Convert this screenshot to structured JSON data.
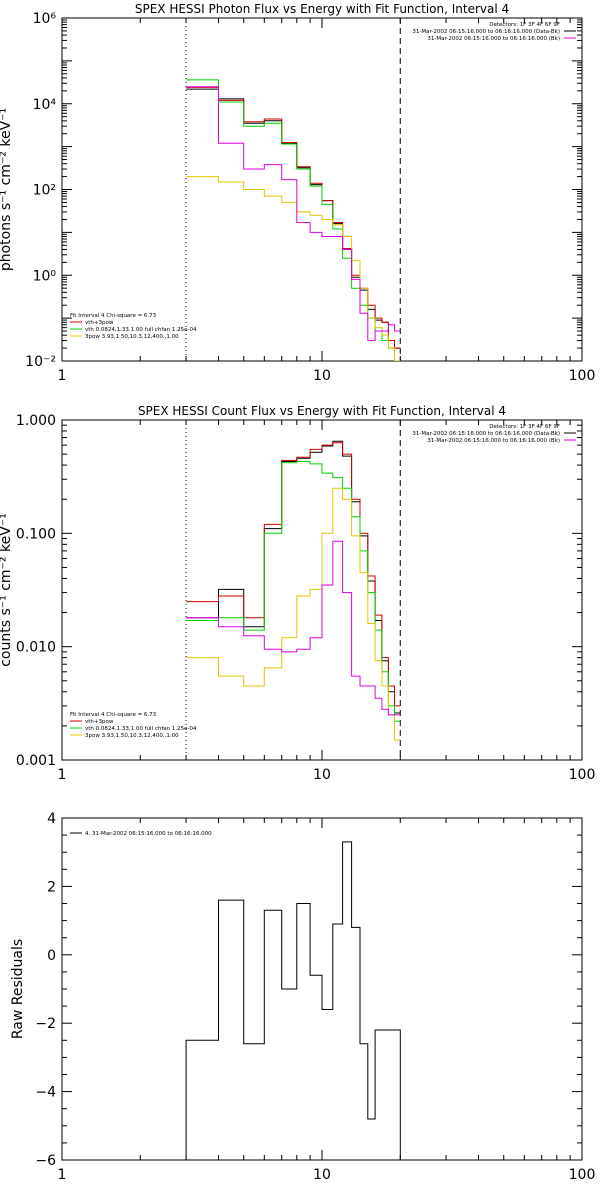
{
  "chart_data": [
    {
      "type": "line",
      "title": "SPEX HESSI Photon Flux vs Energy with Fit Function, Interval 4",
      "ylabel": "photons s⁻¹ cm⁻² keV⁻¹",
      "xlabel": "",
      "xscale": "log",
      "yscale": "log",
      "xlim": [
        1,
        100
      ],
      "ylim": [
        0.01,
        1000000
      ],
      "xtick_labels": [
        "1",
        "10",
        "100"
      ],
      "ytick_labels": [
        "10⁻²",
        "10⁰",
        "10²",
        "10⁴",
        "10⁶"
      ],
      "ytick_values": [
        0.01,
        1,
        100,
        10000,
        1000000
      ],
      "vlines": [
        {
          "x": 3.0,
          "style": "dotted"
        },
        {
          "x": 20.0,
          "style": "dashed"
        }
      ],
      "info_lines": [
        "Detectors: 1F 3F 4F 6F 9F",
        "31-Mar-2002 06:15:16.000 to 06:16:16.000 (Data-Bk)",
        "31-Mar-2002 06:15:16.000 to 06:16:16.000 (Bk)"
      ],
      "info_colors": [
        "",
        "#000000",
        "#e000e0"
      ],
      "fit_label": "Fit Interval 4   Chi-square = 6.73",
      "legend_lines": [
        "vth+3pow",
        "vth 0.0824,1.33,1.00  full chfan 1.25e-04",
        "3pow 3.93,1.50,10.3,12,400.,1.00"
      ],
      "legend_colors": [
        "#d00000",
        "#00d000",
        "#e0c800"
      ],
      "series": [
        {
          "name": "data",
          "color": "#000000",
          "edges": [
            3.0,
            4.0,
            5.0,
            6.0,
            7.0,
            8.0,
            9.0,
            10.0,
            11.0,
            12.0,
            13.0,
            14.0,
            15.0,
            16.0,
            17.0,
            18.0,
            19.0,
            20.0
          ],
          "values": [
            22000,
            13000,
            3500,
            4000,
            1200,
            320,
            130,
            55,
            16,
            4,
            0.9,
            0.45,
            0.16,
            0.09,
            0.08,
            0.03,
            0.02
          ]
        },
        {
          "name": "vth+3pow",
          "color": "#d00000",
          "edges": [
            3.0,
            4.0,
            5.0,
            6.0,
            7.0,
            8.0,
            9.0,
            10.0,
            11.0,
            12.0,
            13.0,
            14.0,
            15.0,
            16.0,
            17.0,
            18.0,
            19.0,
            20.0
          ],
          "values": [
            24000,
            12000,
            3800,
            4400,
            1250,
            340,
            140,
            55,
            17,
            4.2,
            1.0,
            0.5,
            0.2,
            0.1,
            0.08,
            0.03,
            0.02
          ]
        },
        {
          "name": "vth",
          "color": "#00d000",
          "edges": [
            3.0,
            4.0,
            5.0,
            6.0,
            7.0,
            8.0,
            9.0,
            10.0,
            11.0,
            12.0,
            13.0,
            14.0,
            15.0,
            16.0,
            17.0,
            18.0,
            19.0,
            20.0
          ],
          "values": [
            36000,
            11000,
            3000,
            3500,
            1150,
            300,
            120,
            45,
            12,
            2.5,
            0.5,
            0.2,
            0.1,
            0.05,
            0.03,
            0.02,
            0.01
          ]
        },
        {
          "name": "3pow",
          "color": "#e0c800",
          "edges": [
            3.0,
            4.0,
            5.0,
            6.0,
            7.0,
            8.0,
            9.0,
            10.0,
            11.0,
            12.0,
            13.0,
            14.0,
            15.0,
            16.0,
            17.0,
            18.0,
            19.0,
            20.0
          ],
          "values": [
            200,
            150,
            100,
            70,
            50,
            30,
            25,
            20,
            15,
            8,
            2.2,
            0.5,
            0.1,
            0.06,
            0.04,
            0.02,
            0.01
          ]
        },
        {
          "name": "background",
          "color": "#e000e0",
          "edges": [
            3.0,
            4.0,
            5.0,
            6.0,
            7.0,
            8.0,
            9.0,
            10.0,
            11.0,
            12.0,
            13.0,
            14.0,
            15.0,
            16.0,
            17.0,
            18.0,
            19.0,
            20.0
          ],
          "values": [
            25000,
            1200,
            300,
            380,
            170,
            17,
            10,
            8,
            8,
            4,
            0.8,
            0.13,
            0.03,
            0.05,
            0.05,
            0.07,
            0.05
          ]
        }
      ]
    },
    {
      "type": "line",
      "title": "SPEX HESSI Count Flux vs Energy with Fit Function, Interval 4",
      "ylabel": "counts s⁻¹ cm⁻² keV⁻¹",
      "xlabel": "",
      "xscale": "log",
      "yscale": "log",
      "xlim": [
        1,
        100
      ],
      "ylim": [
        0.001,
        1.0
      ],
      "xtick_labels": [
        "1",
        "10",
        "100"
      ],
      "ytick_labels": [
        "0.001",
        "0.010",
        "0.100",
        "1.000"
      ],
      "ytick_values": [
        0.001,
        0.01,
        0.1,
        1.0
      ],
      "vlines": [
        {
          "x": 3.0,
          "style": "dotted"
        },
        {
          "x": 20.0,
          "style": "dashed"
        }
      ],
      "info_lines": [
        "Detectors: 1F 3F 4F 6F 9F",
        "31-Mar-2002 06:15:16.000 to 06:16:16.000 (Data-Bk)",
        "31-Mar-2002 06:15:16.000 to 06:16:16.000 (Bk)"
      ],
      "info_colors": [
        "",
        "#000000",
        "#e000e0"
      ],
      "fit_label": "Fit Interval 4   Chi-square = 6.73",
      "legend_lines": [
        "vth+3pow",
        "vth 0.0824,1.33,1.00  full chfan 1.25e-04",
        "3pow 3.93,1.50,10.3,12,400.,1.00"
      ],
      "legend_colors": [
        "#d00000",
        "#00d000",
        "#e0c800"
      ],
      "series": [
        {
          "name": "data",
          "color": "#000000",
          "edges": [
            3.0,
            4.0,
            5.0,
            6.0,
            7.0,
            8.0,
            9.0,
            10.0,
            11.0,
            12.0,
            13.0,
            14.0,
            15.0,
            16.0,
            17.0,
            18.0,
            19.0,
            20.0
          ],
          "values": [
            0.018,
            0.032,
            0.015,
            0.11,
            0.43,
            0.46,
            0.52,
            0.59,
            0.65,
            0.48,
            0.19,
            0.095,
            0.038,
            0.017,
            0.0075,
            0.004,
            0.0026
          ]
        },
        {
          "name": "vth+3pow",
          "color": "#d00000",
          "edges": [
            3.0,
            4.0,
            5.0,
            6.0,
            7.0,
            8.0,
            9.0,
            10.0,
            11.0,
            12.0,
            13.0,
            14.0,
            15.0,
            16.0,
            17.0,
            18.0,
            19.0,
            20.0
          ],
          "values": [
            0.025,
            0.028,
            0.018,
            0.12,
            0.44,
            0.47,
            0.55,
            0.6,
            0.63,
            0.5,
            0.2,
            0.1,
            0.042,
            0.019,
            0.008,
            0.0045,
            0.003
          ]
        },
        {
          "name": "vth",
          "color": "#00d000",
          "edges": [
            3.0,
            4.0,
            5.0,
            6.0,
            7.0,
            8.0,
            9.0,
            10.0,
            11.0,
            12.0,
            13.0,
            14.0,
            15.0,
            16.0,
            17.0,
            18.0,
            19.0,
            20.0
          ],
          "values": [
            0.017,
            0.018,
            0.014,
            0.1,
            0.42,
            0.43,
            0.41,
            0.34,
            0.31,
            0.25,
            0.14,
            0.07,
            0.03,
            0.014,
            0.006,
            0.003,
            0.0022
          ]
        },
        {
          "name": "3pow",
          "color": "#e0c800",
          "edges": [
            3.0,
            4.0,
            5.0,
            6.0,
            7.0,
            8.0,
            9.0,
            10.0,
            11.0,
            12.0,
            13.0,
            14.0,
            15.0,
            16.0,
            17.0,
            18.0,
            19.0,
            20.0
          ],
          "values": [
            0.008,
            0.0055,
            0.0045,
            0.0065,
            0.012,
            0.028,
            0.032,
            0.1,
            0.25,
            0.2,
            0.095,
            0.045,
            0.016,
            0.0075,
            0.0045,
            0.0025,
            0.0015
          ]
        },
        {
          "name": "background",
          "color": "#e000e0",
          "edges": [
            3.0,
            4.0,
            5.0,
            6.0,
            7.0,
            8.0,
            9.0,
            10.0,
            11.0,
            12.0,
            13.0,
            14.0,
            15.0,
            16.0,
            17.0,
            18.0,
            19.0,
            20.0
          ],
          "values": [
            0.018,
            0.015,
            0.0125,
            0.0095,
            0.009,
            0.0095,
            0.012,
            0.035,
            0.085,
            0.03,
            0.0055,
            0.0045,
            0.0045,
            0.0035,
            0.0028,
            0.0025,
            0.0025
          ]
        }
      ]
    },
    {
      "type": "line",
      "title": "",
      "ylabel": "Raw Residuals",
      "xlabel": "",
      "xscale": "log",
      "yscale": "linear",
      "xlim": [
        1,
        100
      ],
      "ylim": [
        -6,
        4
      ],
      "xtick_labels": [
        "1",
        "10",
        "100"
      ],
      "ytick_labels": [
        "−6",
        "−4",
        "−2",
        "0",
        "2",
        "4"
      ],
      "ytick_values": [
        -6,
        -4,
        -2,
        0,
        2,
        4
      ],
      "vlines": [],
      "info_lines": [],
      "info_colors": [],
      "fit_label": "",
      "legend_lines": [
        "4. 31-Mar-2002 06:15:16.000 to 06:16:16.000"
      ],
      "legend_colors": [
        "#000000"
      ],
      "series": [
        {
          "name": "4. 31-Mar-2002 06:15:16.000 to 06:16:16.000",
          "color": "#000000",
          "edges": [
            3.0,
            4.0,
            5.0,
            6.0,
            7.0,
            8.0,
            9.0,
            10.0,
            11.0,
            12.0,
            13.0,
            14.0,
            15.0,
            16.0,
            17.0,
            18.0,
            19.0,
            20.0
          ],
          "values": [
            -2.5,
            1.6,
            -2.6,
            1.3,
            -1.0,
            1.5,
            -0.6,
            -1.6,
            0.9,
            3.3,
            0.8,
            -2.6,
            -4.8,
            -2.2,
            -2.2,
            -2.2,
            -2.2
          ],
          "from_bottom": true
        }
      ]
    }
  ]
}
